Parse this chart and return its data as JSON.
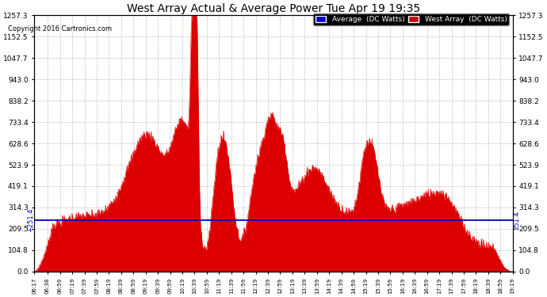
{
  "title": "West Array Actual & Average Power Tue Apr 19 19:35",
  "copyright": "Copyright 2016 Cartronics.com",
  "legend_labels": [
    "Average  (DC Watts)",
    "West Array  (DC Watts)"
  ],
  "legend_colors": [
    "#0000cc",
    "#cc0000"
  ],
  "average_value": 251.4,
  "y_ticks": [
    0.0,
    104.8,
    209.5,
    314.3,
    419.1,
    523.9,
    628.6,
    733.4,
    838.2,
    943.0,
    1047.7,
    1152.5,
    1257.3
  ],
  "y_max": 1257.3,
  "fill_color": "#dd0000",
  "avg_line_color": "#0000cc",
  "background_color": "#ffffff",
  "grid_color": "#999999",
  "x_tick_labels": [
    "06:17",
    "06:38",
    "06:59",
    "07:19",
    "07:39",
    "07:59",
    "08:19",
    "08:39",
    "08:59",
    "09:19",
    "09:39",
    "09:59",
    "10:19",
    "10:39",
    "10:59",
    "11:19",
    "11:39",
    "11:59",
    "12:19",
    "12:39",
    "12:59",
    "13:19",
    "13:39",
    "13:59",
    "14:19",
    "14:39",
    "14:59",
    "15:19",
    "15:39",
    "15:59",
    "16:19",
    "16:39",
    "16:59",
    "17:19",
    "17:39",
    "17:59",
    "18:19",
    "18:39",
    "18:59",
    "19:19"
  ]
}
